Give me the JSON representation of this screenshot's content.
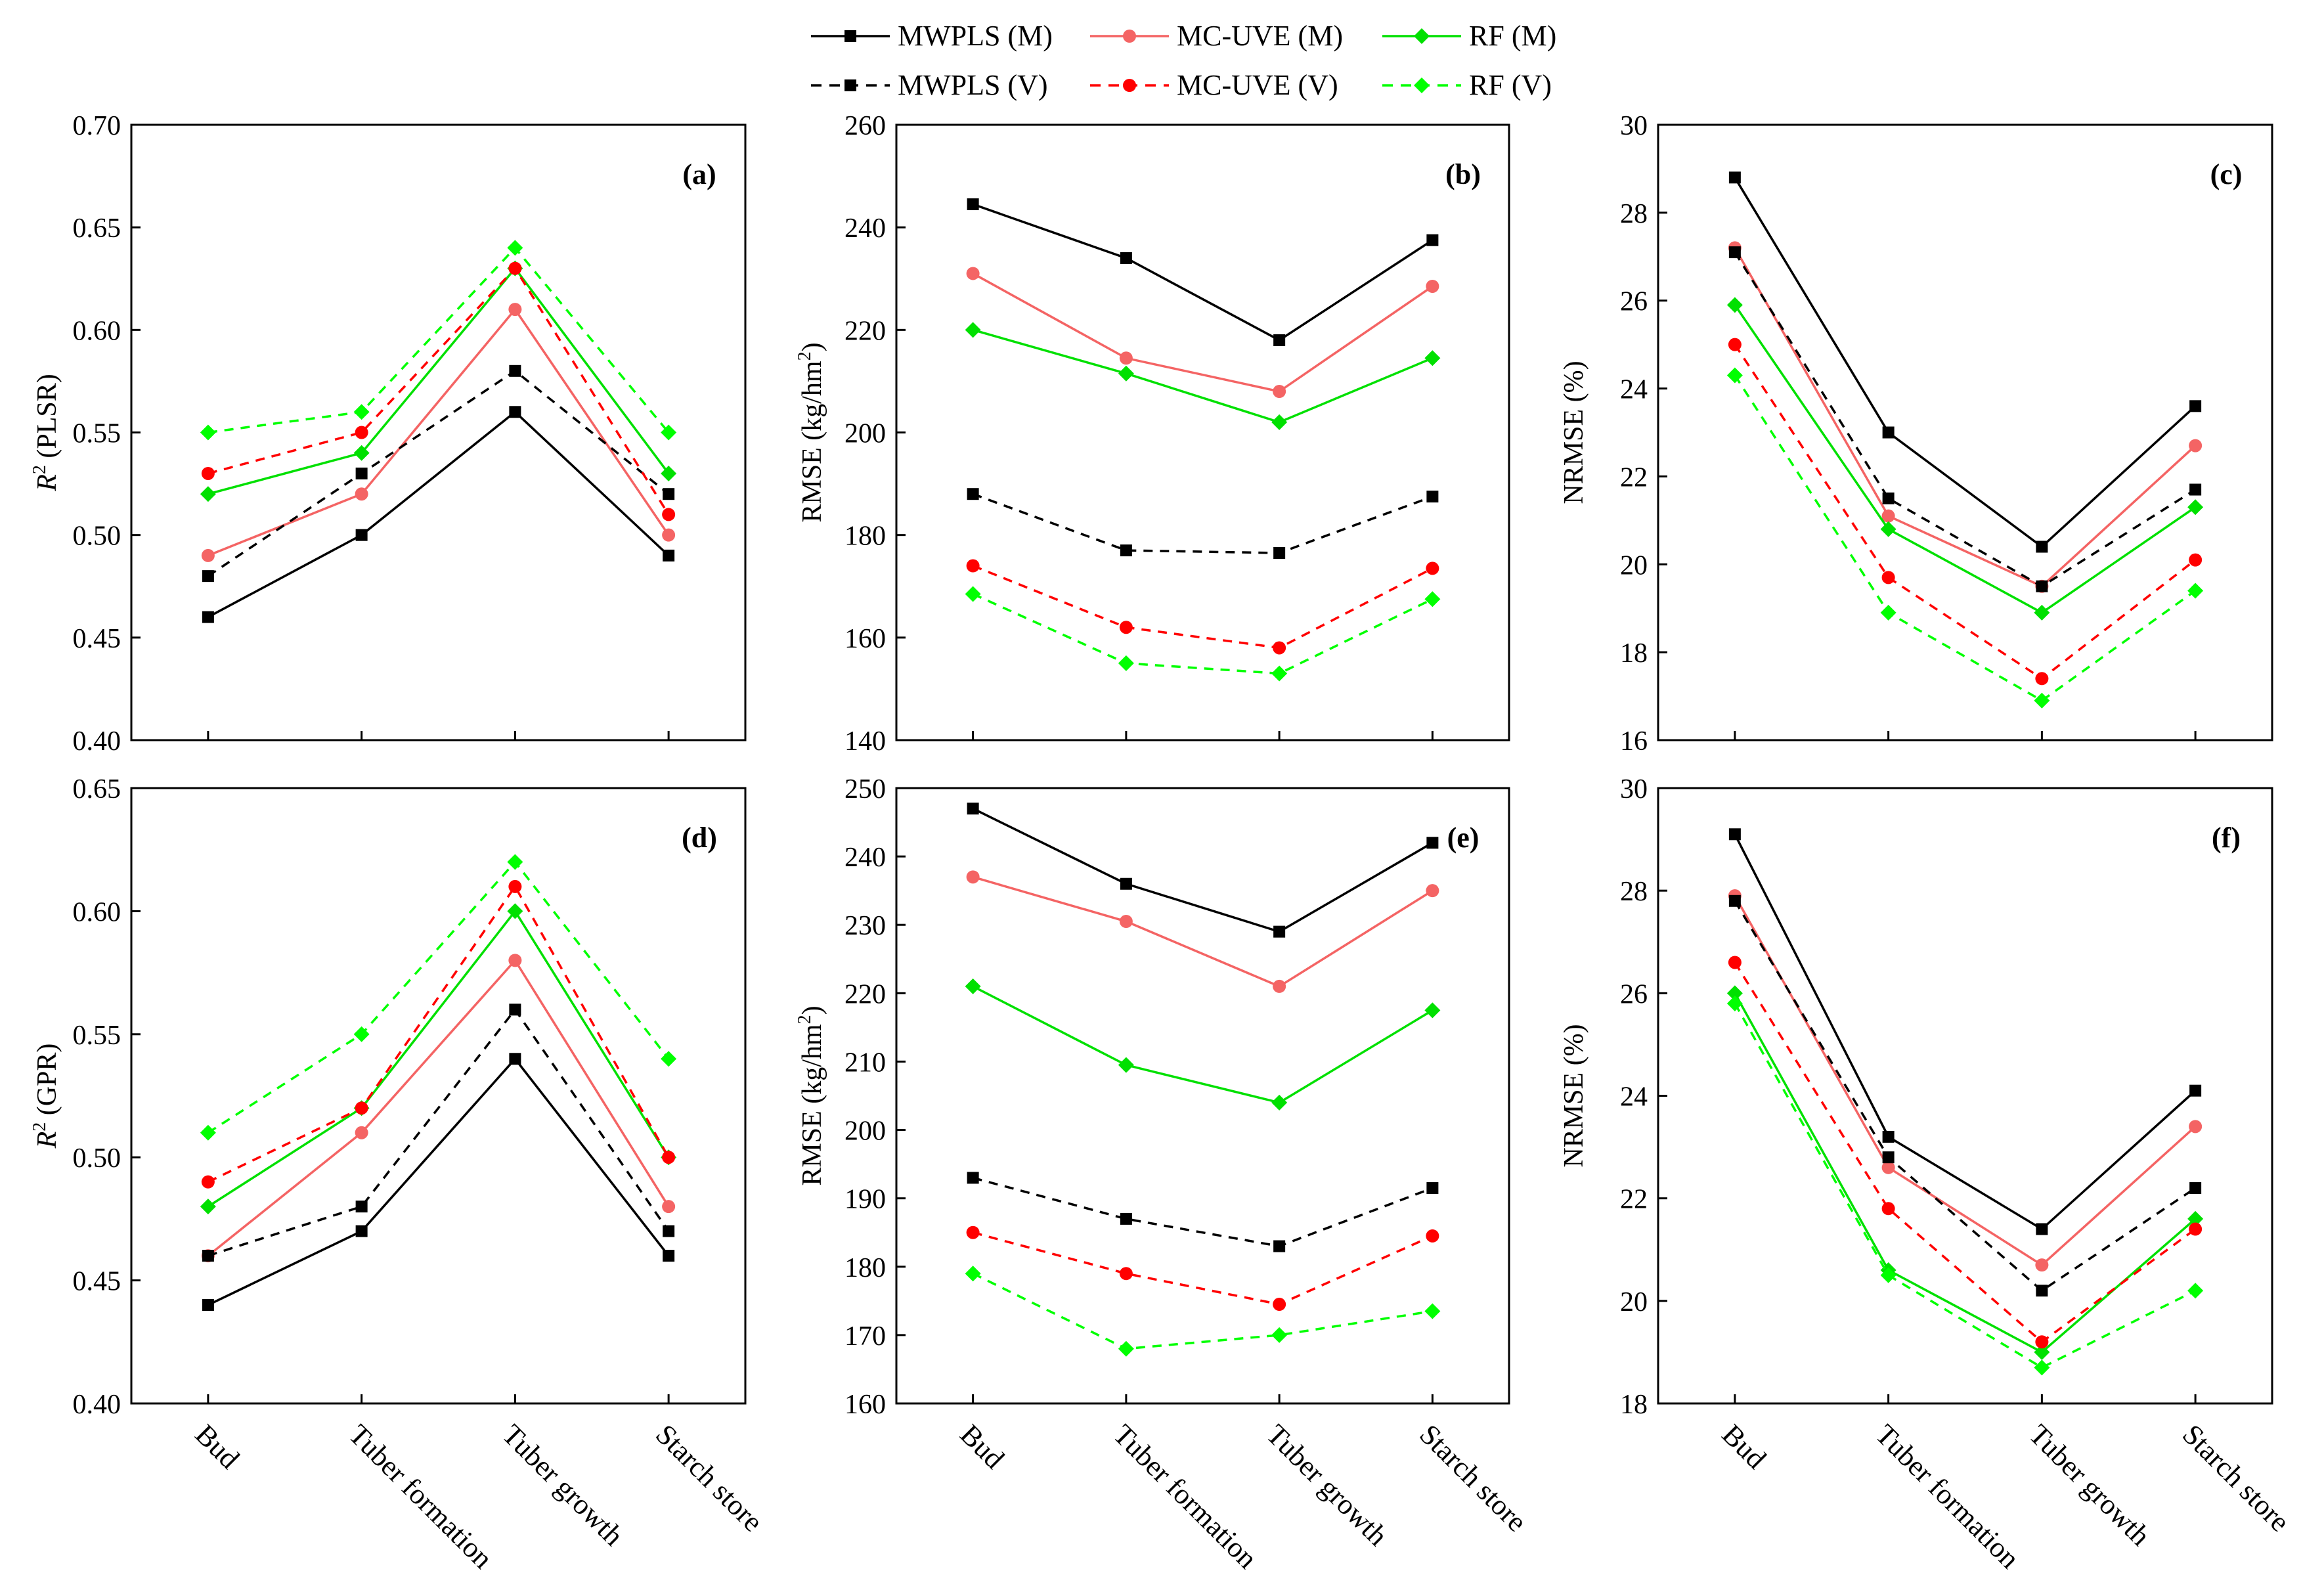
{
  "figure": {
    "categories": [
      "Bud",
      "Tuber formation",
      "Tuber growth",
      "Starch store"
    ]
  },
  "legend": {
    "entries": [
      {
        "label": "MWPLS (M)",
        "color": "#000000",
        "dashed": false,
        "marker": "square"
      },
      {
        "label": "MC-UVE (M)",
        "color": "#f46464",
        "dashed": false,
        "marker": "circle"
      },
      {
        "label": "RF (M)",
        "color": "#00e000",
        "dashed": false,
        "marker": "diamond"
      },
      {
        "label": "MWPLS (V)",
        "color": "#000000",
        "dashed": true,
        "marker": "square"
      },
      {
        "label": "MC-UVE (V)",
        "color": "#ff0000",
        "dashed": true,
        "marker": "circle"
      },
      {
        "label": "RF (V)",
        "color": "#00ff00",
        "dashed": true,
        "marker": "diamond"
      }
    ]
  },
  "chart_data": [
    {
      "type": "line",
      "panel": "(a)",
      "ylabel_sup": "2",
      "ylabel_pre": "R",
      "ylabel_post": " (PLSR)",
      "ylim": [
        0.4,
        0.7
      ],
      "yticks": [
        "0.40",
        "0.45",
        "0.50",
        "0.55",
        "0.60",
        "0.65",
        "0.70"
      ],
      "categories": [
        "Bud",
        "Tuber formation",
        "Tuber growth",
        "Starch store"
      ],
      "series": [
        {
          "name": "MWPLS (M)",
          "values": [
            0.46,
            0.5,
            0.56,
            0.49
          ]
        },
        {
          "name": "MC-UVE (M)",
          "values": [
            0.49,
            0.52,
            0.61,
            0.5
          ]
        },
        {
          "name": "RF (M)",
          "values": [
            0.52,
            0.54,
            0.63,
            0.53
          ]
        },
        {
          "name": "MWPLS (V)",
          "values": [
            0.48,
            0.53,
            0.58,
            0.52
          ]
        },
        {
          "name": "MC-UVE (V)",
          "values": [
            0.53,
            0.55,
            0.63,
            0.51
          ]
        },
        {
          "name": "RF (V)",
          "values": [
            0.55,
            0.56,
            0.64,
            0.55
          ]
        }
      ]
    },
    {
      "type": "line",
      "panel": "(b)",
      "ylabel_pre": "RMSE (kg/hm",
      "ylabel_sup": "2",
      "ylabel_post": ")",
      "ylim": [
        140,
        260
      ],
      "yticks": [
        "140",
        "160",
        "180",
        "200",
        "220",
        "240",
        "260"
      ],
      "categories": [
        "Bud",
        "Tuber formation",
        "Tuber growth",
        "Starch store"
      ],
      "series": [
        {
          "name": "MWPLS (M)",
          "values": [
            244.5,
            234,
            218,
            237.5
          ]
        },
        {
          "name": "MC-UVE (M)",
          "values": [
            231,
            214.5,
            208,
            228.5
          ]
        },
        {
          "name": "RF (M)",
          "values": [
            220,
            211.5,
            202,
            214.5
          ]
        },
        {
          "name": "MWPLS (V)",
          "values": [
            188,
            177,
            176.5,
            187.5
          ]
        },
        {
          "name": "MC-UVE (V)",
          "values": [
            174,
            162,
            158,
            173.5
          ]
        },
        {
          "name": "RF (V)",
          "values": [
            168.5,
            155,
            153,
            167.5
          ]
        }
      ]
    },
    {
      "type": "line",
      "panel": "(c)",
      "ylabel_pre": "NRMSE (%)",
      "ylabel_sup": "",
      "ylabel_post": "",
      "ylim": [
        16,
        30
      ],
      "yticks": [
        "16",
        "18",
        "20",
        "22",
        "24",
        "26",
        "28",
        "30"
      ],
      "categories": [
        "Bud",
        "Tuber formation",
        "Tuber growth",
        "Starch store"
      ],
      "series": [
        {
          "name": "MWPLS (M)",
          "values": [
            28.8,
            23.0,
            20.4,
            23.6
          ]
        },
        {
          "name": "MC-UVE (M)",
          "values": [
            27.2,
            21.1,
            19.5,
            22.7
          ]
        },
        {
          "name": "RF (M)",
          "values": [
            25.9,
            20.8,
            18.9,
            21.3
          ]
        },
        {
          "name": "MWPLS (V)",
          "values": [
            27.1,
            21.5,
            19.5,
            21.7
          ]
        },
        {
          "name": "MC-UVE (V)",
          "values": [
            25.0,
            19.7,
            17.4,
            20.1
          ]
        },
        {
          "name": "RF (V)",
          "values": [
            24.3,
            18.9,
            16.9,
            19.4
          ]
        }
      ]
    },
    {
      "type": "line",
      "panel": "(d)",
      "ylabel_pre": "R",
      "ylabel_sup": "2",
      "ylabel_post": " (GPR)",
      "ylim": [
        0.4,
        0.65
      ],
      "yticks": [
        "0.40",
        "0.45",
        "0.50",
        "0.55",
        "0.60",
        "0.65"
      ],
      "categories": [
        "Bud",
        "Tuber formation",
        "Tuber growth",
        "Starch store"
      ],
      "series": [
        {
          "name": "MWPLS (M)",
          "values": [
            0.44,
            0.47,
            0.54,
            0.46
          ]
        },
        {
          "name": "MC-UVE (M)",
          "values": [
            0.46,
            0.51,
            0.58,
            0.48
          ]
        },
        {
          "name": "RF (M)",
          "values": [
            0.48,
            0.52,
            0.6,
            0.5
          ]
        },
        {
          "name": "MWPLS (V)",
          "values": [
            0.46,
            0.48,
            0.56,
            0.47
          ]
        },
        {
          "name": "MC-UVE (V)",
          "values": [
            0.49,
            0.52,
            0.61,
            0.5
          ]
        },
        {
          "name": "RF (V)",
          "values": [
            0.51,
            0.55,
            0.62,
            0.54
          ]
        }
      ]
    },
    {
      "type": "line",
      "panel": "(e)",
      "ylabel_pre": "RMSE (kg/hm",
      "ylabel_sup": "2",
      "ylabel_post": ")",
      "ylim": [
        160,
        250
      ],
      "yticks": [
        "160",
        "170",
        "180",
        "190",
        "200",
        "210",
        "220",
        "230",
        "240",
        "250"
      ],
      "categories": [
        "Bud",
        "Tuber formation",
        "Tuber growth",
        "Starch store"
      ],
      "series": [
        {
          "name": "MWPLS (M)",
          "values": [
            247,
            236,
            229,
            242
          ]
        },
        {
          "name": "MC-UVE (M)",
          "values": [
            237,
            230.5,
            221,
            235
          ]
        },
        {
          "name": "RF (M)",
          "values": [
            221,
            209.5,
            204,
            217.5
          ]
        },
        {
          "name": "MWPLS (V)",
          "values": [
            193,
            187,
            183,
            191.5
          ]
        },
        {
          "name": "MC-UVE (V)",
          "values": [
            185,
            179,
            174.5,
            184.5
          ]
        },
        {
          "name": "RF (V)",
          "values": [
            179,
            168,
            170,
            173.5
          ]
        }
      ]
    },
    {
      "type": "line",
      "panel": "(f)",
      "ylabel_pre": "NRMSE (%)",
      "ylabel_sup": "",
      "ylabel_post": "",
      "ylim": [
        18,
        30
      ],
      "yticks": [
        "18",
        "20",
        "22",
        "24",
        "26",
        "28",
        "30"
      ],
      "categories": [
        "Bud",
        "Tuber formation",
        "Tuber growth",
        "Starch store"
      ],
      "series": [
        {
          "name": "MWPLS (M)",
          "values": [
            29.1,
            23.2,
            21.4,
            24.1
          ]
        },
        {
          "name": "MC-UVE (M)",
          "values": [
            27.9,
            22.6,
            20.7,
            23.4
          ]
        },
        {
          "name": "RF (M)",
          "values": [
            26.0,
            20.6,
            19.0,
            21.6
          ]
        },
        {
          "name": "MWPLS (V)",
          "values": [
            27.8,
            22.8,
            20.2,
            22.2
          ]
        },
        {
          "name": "MC-UVE (V)",
          "values": [
            26.6,
            21.8,
            19.2,
            21.4
          ]
        },
        {
          "name": "RF (V)",
          "values": [
            25.8,
            20.5,
            18.7,
            20.2
          ]
        }
      ]
    }
  ]
}
